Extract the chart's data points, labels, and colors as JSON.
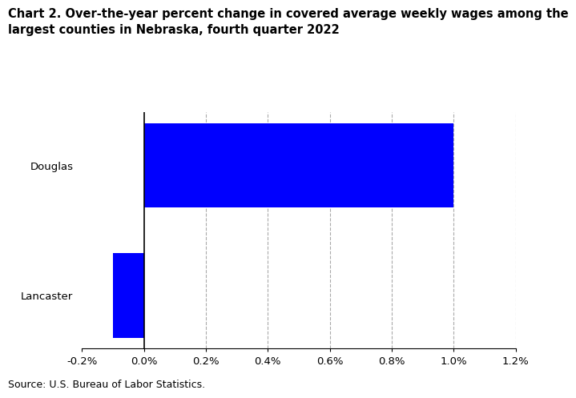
{
  "title_line1": "Chart 2. Over-the-year percent change in covered average weekly wages among the",
  "title_line2": "largest counties in Nebraska, fourth quarter 2022",
  "categories": [
    "Douglas",
    "Lancaster"
  ],
  "values": [
    1.0,
    -0.1
  ],
  "bar_color": "#0000ff",
  "xlim": [
    -0.002,
    0.012
  ],
  "xticks": [
    -0.002,
    0.0,
    0.002,
    0.004,
    0.006,
    0.008,
    0.01,
    0.012
  ],
  "xticklabels": [
    "-0.2%",
    "0.0%",
    "0.2%",
    "0.4%",
    "0.6%",
    "0.8%",
    "1.0%",
    "1.2%"
  ],
  "source": "Source: U.S. Bureau of Labor Statistics.",
  "title_fontsize": 10.5,
  "tick_fontsize": 9.5,
  "source_fontsize": 9,
  "grid_color": "#aaaaaa",
  "zero_line_color": "#000000"
}
